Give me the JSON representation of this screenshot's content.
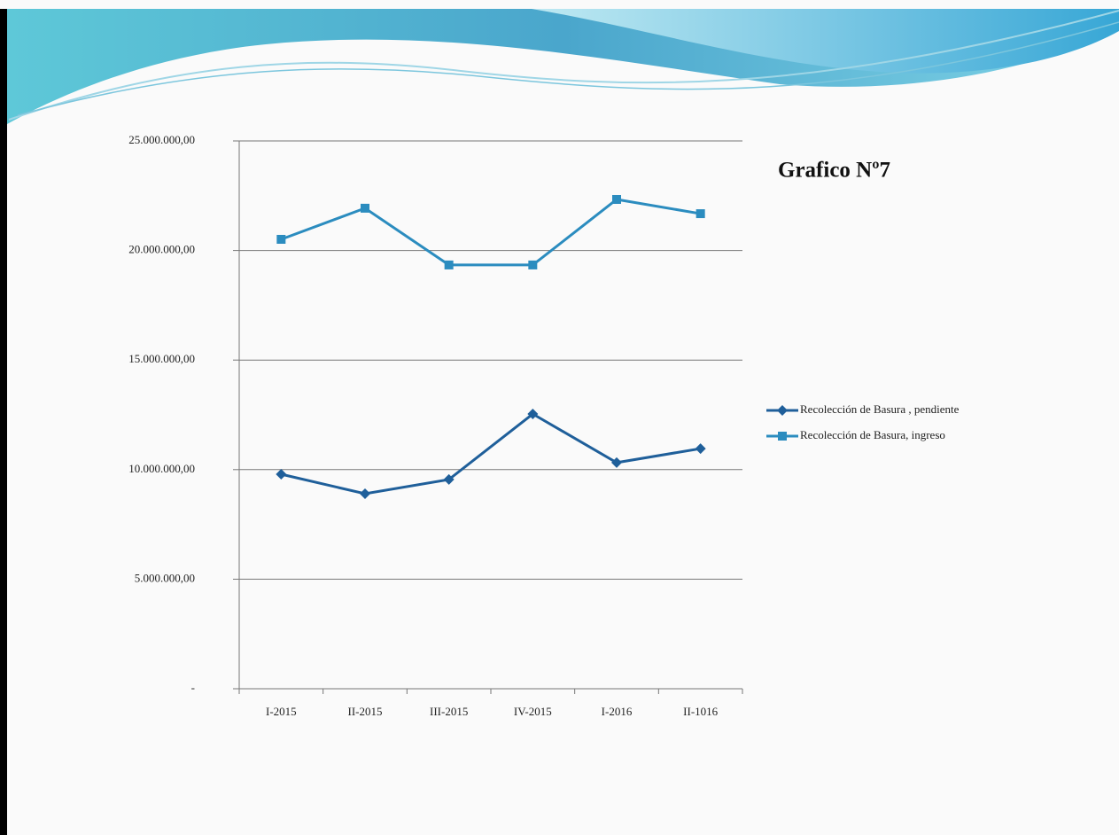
{
  "chart_data": {
    "type": "line",
    "title": "Grafico Nº7",
    "categories": [
      "I-2015",
      "II-2015",
      "III-2015",
      "IV-2015",
      "I-2016",
      "II-1016"
    ],
    "series": [
      {
        "name": "Recolección de Basura , pendiente",
        "color": "#1f5f9a",
        "marker": "diamond",
        "values": [
          9790000,
          8900000,
          9550000,
          12540000,
          10320000,
          10960000
        ]
      },
      {
        "name": "Recolección de Basura, ingreso",
        "color": "#2b8cbf",
        "marker": "square",
        "values": [
          20510000,
          21930000,
          19340000,
          19340000,
          22330000,
          21680000
        ]
      }
    ],
    "ylim": [
      0,
      25000000
    ],
    "yticks": [
      {
        "value": 0,
        "label": "-"
      },
      {
        "value": 5000000,
        "label": "5.000.000,00"
      },
      {
        "value": 10000000,
        "label": "10.000.000,00"
      },
      {
        "value": 15000000,
        "label": "15.000.000,00"
      },
      {
        "value": 20000000,
        "label": "20.000.000,00"
      },
      {
        "value": 25000000,
        "label": "25.000.000,00"
      }
    ],
    "grid": true,
    "legend": "right"
  }
}
